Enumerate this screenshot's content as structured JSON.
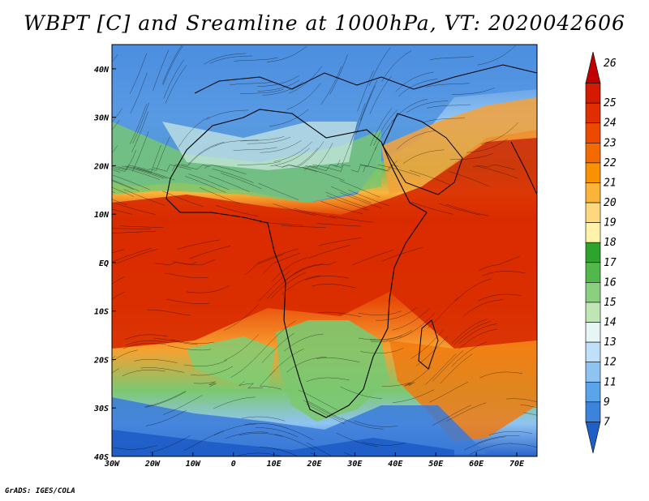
{
  "title": "WBPT [C] and Sreamline at 1000hPa, VT: 2020042606",
  "credit": "GrADS: IGES/COLA",
  "map": {
    "variable": "WBPT",
    "unit": "C",
    "level": "1000hPa",
    "valid_time": "2020042606",
    "lon_range": [
      -30,
      75
    ],
    "lat_range": [
      -40,
      45
    ],
    "x_ticks": [
      "30W",
      "20W",
      "10W",
      "0",
      "10E",
      "20E",
      "30E",
      "40E",
      "50E",
      "60E",
      "70E"
    ],
    "y_ticks": [
      "40N",
      "30N",
      "20N",
      "10N",
      "EQ",
      "10S",
      "20S",
      "30S",
      "40S"
    ],
    "overlay": "streamlines"
  },
  "colorbar": {
    "labels": [
      "26",
      "25",
      "24",
      "23",
      "22",
      "21",
      "20",
      "19",
      "18",
      "17",
      "16",
      "15",
      "14",
      "13",
      "12",
      "11",
      "9",
      "7"
    ],
    "colors": [
      "#c00000",
      "#d41a00",
      "#e02e00",
      "#ec4a00",
      "#f46a00",
      "#f89200",
      "#fbb43a",
      "#fdd880",
      "#fef3a8",
      "#2ea32e",
      "#52b84c",
      "#8ad07e",
      "#bfe6b4",
      "#e6f6f4",
      "#bfe0f8",
      "#8fc4f2",
      "#5aa4ea",
      "#3a84dc",
      "#1e60c8"
    ]
  }
}
